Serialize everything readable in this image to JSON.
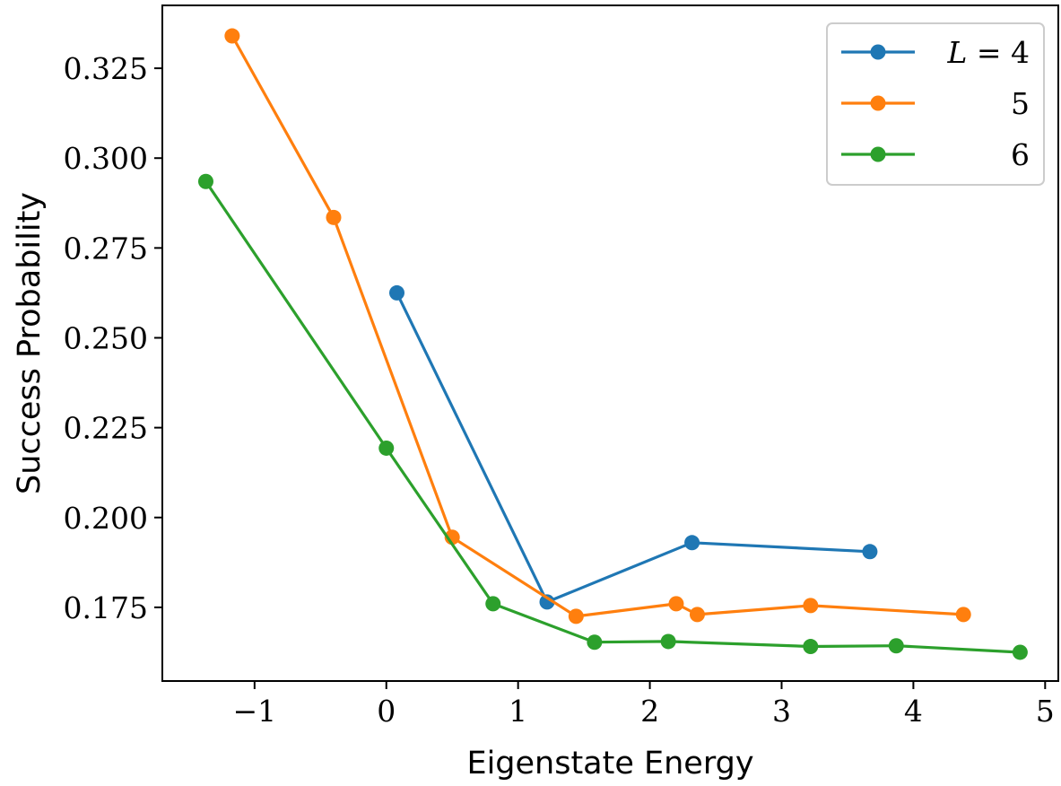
{
  "chart_data": {
    "type": "line",
    "title": "",
    "xlabel": "Eigenstate Energy",
    "ylabel": "Success Probability",
    "xlim": [
      -1.7,
      5.1
    ],
    "ylim": [
      0.1545,
      0.3425
    ],
    "xticks": [
      -1,
      0,
      1,
      2,
      3,
      4,
      5
    ],
    "xtick_labels": [
      "−1",
      "0",
      "1",
      "2",
      "3",
      "4",
      "5"
    ],
    "yticks": [
      0.175,
      0.2,
      0.225,
      0.25,
      0.275,
      0.3,
      0.325
    ],
    "ytick_labels": [
      "0.175",
      "0.200",
      "0.225",
      "0.250",
      "0.275",
      "0.300",
      "0.325"
    ],
    "grid": false,
    "legend_position": "top-right",
    "legend_title_prefix": "L = ",
    "series": [
      {
        "name": "4",
        "color": "#1f77b4",
        "x": [
          0.08,
          1.22,
          2.32,
          3.67
        ],
        "y": [
          0.2625,
          0.1765,
          0.193,
          0.1905
        ]
      },
      {
        "name": "5",
        "color": "#ff7f0e",
        "x": [
          -1.17,
          -0.4,
          0.5,
          1.44,
          2.2,
          2.36,
          3.22,
          4.38
        ],
        "y": [
          0.334,
          0.2835,
          0.1945,
          0.1725,
          0.176,
          0.173,
          0.1755,
          0.173
        ]
      },
      {
        "name": "6",
        "color": "#2ca02c",
        "x": [
          -1.37,
          0.0,
          0.81,
          1.58,
          2.14,
          3.22,
          3.87,
          4.81
        ],
        "y": [
          0.2935,
          0.2193,
          0.176,
          0.1653,
          0.1655,
          0.1641,
          0.1643,
          0.1625
        ]
      }
    ]
  }
}
